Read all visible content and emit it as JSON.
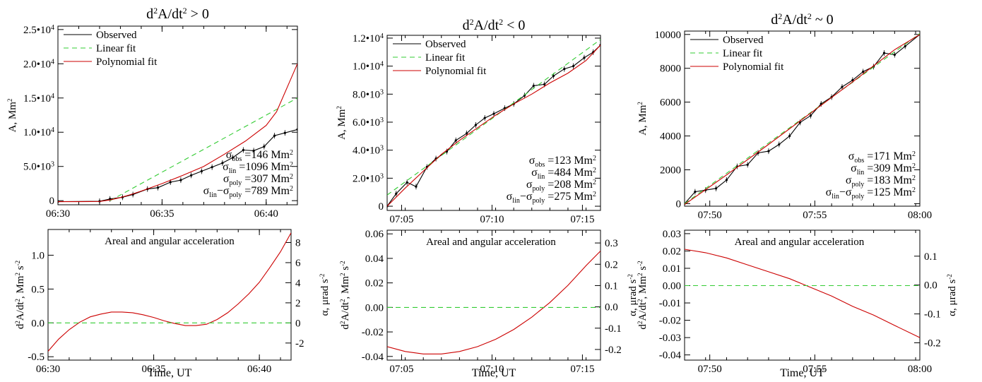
{
  "chart_data": [
    {
      "type": "line",
      "title": "d2A/dt2 > 0",
      "title_parts": [
        "d",
        "2",
        "A/dt",
        "2",
        " > 0"
      ],
      "ylabel": "A, Mm2",
      "ylabel_parts": [
        "A, Mm",
        "2"
      ],
      "x_unit": "minutes (UT)",
      "xlim": [
        0,
        11.5
      ],
      "ylim": [
        -600,
        25500
      ],
      "x_ticks": [
        0,
        5,
        10
      ],
      "x_tick_labels": [
        "06:30",
        "06:35",
        "06:40"
      ],
      "y_ticks": [
        0,
        5000,
        10000,
        15000,
        20000,
        25000
      ],
      "y_tick_labels": [
        {
          "m": "0",
          "e": ""
        },
        {
          "m": "5.0•10",
          "e": "3"
        },
        {
          "m": "1.0•10",
          "e": "4"
        },
        {
          "m": "1.5•10",
          "e": "4"
        },
        {
          "m": "2.0•10",
          "e": "4"
        },
        {
          "m": "2.5•10",
          "e": "4"
        }
      ],
      "legend": {
        "position": "top-left",
        "entries": [
          "Observed",
          "Linear fit",
          "Polynomial fit"
        ]
      },
      "series": [
        {
          "name": "Observed",
          "color": "#000000",
          "style": "solid",
          "markers": true,
          "x": [
            0,
            2.0,
            2.5,
            3.1,
            3.6,
            4.3,
            4.8,
            5.4,
            5.9,
            6.4,
            6.9,
            7.4,
            7.9,
            8.4,
            8.9,
            9.4,
            9.9,
            10.4,
            10.9,
            11.5
          ],
          "y": [
            -150,
            -80,
            250,
            500,
            900,
            1700,
            1900,
            2700,
            3000,
            3700,
            4300,
            4900,
            5500,
            6300,
            7400,
            7300,
            7900,
            9500,
            9900,
            10400
          ]
        },
        {
          "name": "Linear fit",
          "color": "#33cc33",
          "style": "dashed",
          "x": [
            2.5,
            11.5
          ],
          "y": [
            0,
            15000
          ]
        },
        {
          "name": "Polynomial fit",
          "color": "#cc0000",
          "style": "solid",
          "x": [
            0,
            1,
            2,
            2.5,
            3,
            3.5,
            4,
            5,
            6,
            7,
            8,
            9,
            10,
            10.5,
            11,
            11.5
          ],
          "y": [
            -150,
            -150,
            -120,
            100,
            450,
            900,
            1400,
            2500,
            3700,
            5000,
            6800,
            8700,
            11000,
            13000,
            16500,
            20000
          ]
        }
      ],
      "annotations": [
        {
          "sym": "σ",
          "sub": "obs",
          "text": " =146 Mm",
          "sup": "2"
        },
        {
          "sym": "σ",
          "sub": "lin",
          "text": " =1096 Mm",
          "sup": "2"
        },
        {
          "sym": "σ",
          "sub": "poly",
          "text": " =307 Mm",
          "sup": "2"
        },
        {
          "sym": "σ",
          "sub": "lin",
          "mid": "−σ",
          "sub2": "poly",
          "text": " =789 Mm",
          "sup": "2"
        }
      ]
    },
    {
      "type": "line",
      "title": "d2A/dt2 < 0",
      "title_parts": [
        "d",
        "2",
        "A/dt",
        "2",
        " < 0"
      ],
      "ylabel": "A, Mm2",
      "ylabel_parts": [
        "A, Mm",
        "2"
      ],
      "x_unit": "minutes (UT)",
      "xlim": [
        0,
        11.8
      ],
      "ylim": [
        -300,
        12200
      ],
      "x_ticks": [
        0.8,
        5.8,
        10.8
      ],
      "x_tick_labels": [
        "07:05",
        "07:10",
        "07:15"
      ],
      "y_ticks": [
        0,
        2000,
        4000,
        6000,
        8000,
        10000,
        12000
      ],
      "y_tick_labels": [
        {
          "m": "0",
          "e": ""
        },
        {
          "m": "2.0•10",
          "e": "3"
        },
        {
          "m": "4.0•10",
          "e": "3"
        },
        {
          "m": "6.0•10",
          "e": "3"
        },
        {
          "m": "8.0•10",
          "e": "3"
        },
        {
          "m": "1.0•10",
          "e": "4"
        },
        {
          "m": "1.2•10",
          "e": "4"
        }
      ],
      "legend": {
        "position": "top-left",
        "entries": [
          "Observed",
          "Linear fit",
          "Polynomial fit"
        ]
      },
      "series": [
        {
          "name": "Observed",
          "color": "#000000",
          "style": "solid",
          "markers": true,
          "x": [
            0,
            0.5,
            1.1,
            1.6,
            2.2,
            2.7,
            3.3,
            3.8,
            4.4,
            4.9,
            5.4,
            5.9,
            6.5,
            7.0,
            7.6,
            8.1,
            8.7,
            9.2,
            9.8,
            10.3,
            10.9,
            11.4,
            11.8
          ],
          "y": [
            0,
            900,
            1700,
            1400,
            2800,
            3400,
            3900,
            4700,
            5200,
            5800,
            6300,
            6600,
            7000,
            7300,
            7900,
            8600,
            8700,
            9300,
            9800,
            10000,
            10600,
            11000,
            11500
          ]
        },
        {
          "name": "Linear fit",
          "color": "#33cc33",
          "style": "dashed",
          "x": [
            0,
            11.8
          ],
          "y": [
            800,
            11900
          ]
        },
        {
          "name": "Polynomial fit",
          "color": "#cc0000",
          "style": "solid",
          "x": [
            0,
            1,
            2,
            3,
            4,
            5,
            6,
            7,
            8,
            9,
            10,
            11,
            11.8
          ],
          "y": [
            0,
            1300,
            2500,
            3700,
            4700,
            5600,
            6500,
            7300,
            8000,
            8800,
            9500,
            10400,
            11500
          ]
        }
      ],
      "annotations": [
        {
          "sym": "σ",
          "sub": "obs",
          "text": " =123 Mm",
          "sup": "2"
        },
        {
          "sym": "σ",
          "sub": "lin",
          "text": " =484 Mm",
          "sup": "2"
        },
        {
          "sym": "σ",
          "sub": "poly",
          "text": " =208 Mm",
          "sup": "2"
        },
        {
          "sym": "σ",
          "sub": "lin",
          "mid": "−σ",
          "sub2": "poly",
          "text": " =275 Mm",
          "sup": "2"
        }
      ]
    },
    {
      "type": "line",
      "title": "d2A/dt2 ~ 0",
      "title_parts": [
        "d",
        "2",
        "A/dt",
        "2",
        " ~ 0"
      ],
      "ylabel": "A, Mm2",
      "ylabel_parts": [
        "A, Mm",
        "2"
      ],
      "x_unit": "minutes (UT)",
      "xlim": [
        0,
        11.2
      ],
      "ylim": [
        -150,
        10200
      ],
      "x_ticks": [
        1.2,
        6.2,
        11.2
      ],
      "x_tick_labels": [
        "07:50",
        "07:55",
        "08:00"
      ],
      "y_ticks": [
        0,
        2000,
        4000,
        6000,
        8000,
        10000
      ],
      "y_tick_labels": [
        {
          "m": "0",
          "e": ""
        },
        {
          "m": "2000",
          "e": ""
        },
        {
          "m": "4000",
          "e": ""
        },
        {
          "m": "6000",
          "e": ""
        },
        {
          "m": "8000",
          "e": ""
        },
        {
          "m": "10000",
          "e": ""
        }
      ],
      "legend": {
        "position": "top-left",
        "entries": [
          "Observed",
          "Linear fit",
          "Polynomial fit"
        ]
      },
      "series": [
        {
          "name": "Observed",
          "color": "#000000",
          "style": "solid",
          "markers": true,
          "x": [
            0,
            0.5,
            1.0,
            1.5,
            2.0,
            2.5,
            3.0,
            3.5,
            4.0,
            4.5,
            5.0,
            5.5,
            6.0,
            6.5,
            7.0,
            7.5,
            8.0,
            8.5,
            9.0,
            9.5,
            10.0,
            10.5,
            11.2
          ],
          "y": [
            0,
            700,
            800,
            900,
            1400,
            2200,
            2300,
            3000,
            3100,
            3500,
            4000,
            4800,
            5200,
            5900,
            6300,
            6900,
            7300,
            7800,
            8100,
            8900,
            8800,
            9300,
            10000
          ]
        },
        {
          "name": "Linear fit",
          "color": "#33cc33",
          "style": "dashed",
          "x": [
            0,
            11.2
          ],
          "y": [
            0,
            10050
          ]
        },
        {
          "name": "Polynomial fit",
          "color": "#cc0000",
          "style": "solid",
          "x": [
            0,
            2,
            4,
            6,
            8,
            10,
            11.2
          ],
          "y": [
            -50,
            1700,
            3500,
            5350,
            7200,
            9100,
            10000
          ]
        }
      ],
      "annotations": [
        {
          "sym": "σ",
          "sub": "obs",
          "text": " =171 Mm",
          "sup": "2"
        },
        {
          "sym": "σ",
          "sub": "lin",
          "text": " =309 Mm",
          "sup": "2"
        },
        {
          "sym": "σ",
          "sub": "poly",
          "text": " =183 Mm",
          "sup": "2"
        },
        {
          "sym": "σ",
          "sub": "lin",
          "mid": "−σ",
          "sub2": "poly",
          "text": " =125 Mm",
          "sup": "2"
        }
      ]
    },
    {
      "type": "line",
      "title": "Areal and angular acceleration",
      "xlabel": "Time, UT",
      "ylabel": "d2A/dt2, Mm2 s-2",
      "ylabel_parts": [
        "d",
        "2",
        "A/dt",
        "2",
        ", Mm",
        "2",
        " s",
        "-2"
      ],
      "y2label": "α, μrad s-2",
      "y2label_parts": [
        "α, μrad s",
        "-2"
      ],
      "xlim": [
        0,
        11.5
      ],
      "ylim": [
        -0.55,
        1.38
      ],
      "y2lim": [
        -3.7,
        9.3
      ],
      "x_ticks": [
        0,
        5,
        10
      ],
      "x_tick_labels": [
        "06:30",
        "06:35",
        "06:40"
      ],
      "y_ticks": [
        -0.5,
        0.0,
        0.5,
        1.0
      ],
      "y_tick_labels": [
        "-0.5",
        "0.0",
        "0.5",
        "1.0"
      ],
      "y2_ticks": [
        -2,
        0,
        2,
        4,
        6,
        8
      ],
      "y2_tick_labels": [
        "-2",
        "0",
        "2",
        "4",
        "6",
        "8"
      ],
      "series": [
        {
          "name": "",
          "color": "#cc0000",
          "style": "solid",
          "x": [
            0,
            0.5,
            1,
            1.5,
            2,
            2.5,
            3,
            3.5,
            4,
            4.5,
            5,
            5.5,
            6,
            6.5,
            7,
            7.5,
            8,
            8.5,
            9,
            9.5,
            10,
            10.5,
            11,
            11.5
          ],
          "y": [
            -0.42,
            -0.24,
            -0.1,
            0.01,
            0.09,
            0.13,
            0.16,
            0.16,
            0.15,
            0.12,
            0.08,
            0.03,
            -0.01,
            -0.04,
            -0.04,
            -0.02,
            0.05,
            0.15,
            0.28,
            0.43,
            0.6,
            0.82,
            1.05,
            1.33
          ]
        },
        {
          "name": "",
          "color": "#33cc33",
          "style": "dashed",
          "x": [
            0,
            11.5
          ],
          "y": [
            0,
            0
          ]
        }
      ]
    },
    {
      "type": "line",
      "title": "Areal and angular acceleration",
      "xlabel": "Time, UT",
      "ylabel": "d2A/dt2, Mm2 s-2",
      "ylabel_parts": [
        "d",
        "2",
        "A/dt",
        "2",
        ", Mm",
        "2",
        " s",
        "-2"
      ],
      "y2label": "α, μrad s-2",
      "y2label_parts": [
        "α, μrad s",
        "-2"
      ],
      "xlim": [
        0,
        11.8
      ],
      "ylim": [
        -0.043,
        0.063
      ],
      "y2lim": [
        -0.25,
        0.36
      ],
      "x_ticks": [
        0.8,
        5.8,
        10.8
      ],
      "x_tick_labels": [
        "07:05",
        "07:10",
        "07:15"
      ],
      "y_ticks": [
        -0.04,
        -0.02,
        0.0,
        0.02,
        0.04,
        0.06
      ],
      "y_tick_labels": [
        "-0.04",
        "-0.02",
        "0.00",
        "0.02",
        "0.04",
        "0.06"
      ],
      "y2_ticks": [
        -0.2,
        -0.1,
        0.0,
        0.1,
        0.2,
        0.3
      ],
      "y2_tick_labels": [
        "-0.2",
        "-0.1",
        "0.0",
        "0.1",
        "0.2",
        "0.3"
      ],
      "series": [
        {
          "name": "",
          "color": "#cc0000",
          "style": "solid",
          "x": [
            0,
            1,
            2,
            3,
            4,
            5,
            6,
            7,
            8,
            9,
            10,
            11,
            11.8
          ],
          "y": [
            -0.032,
            -0.036,
            -0.038,
            -0.038,
            -0.036,
            -0.032,
            -0.026,
            -0.018,
            -0.008,
            0.004,
            0.018,
            0.034,
            0.046
          ]
        },
        {
          "name": "",
          "color": "#33cc33",
          "style": "dashed",
          "x": [
            0,
            11.8
          ],
          "y": [
            0,
            0
          ]
        }
      ]
    },
    {
      "type": "line",
      "title": "Areal and angular acceleration",
      "xlabel": "Time, UT",
      "ylabel": "d2A/dt2, Mm2 s-2",
      "ylabel_parts": [
        "d",
        "2",
        "A/dt",
        "2",
        ", Mm",
        "2",
        " s",
        "-2"
      ],
      "y2label": "α, μrad s-2",
      "y2label_parts": [
        "α, μrad s",
        "-2"
      ],
      "xlim": [
        0,
        11.2
      ],
      "ylim": [
        -0.043,
        0.032
      ],
      "y2lim": [
        -0.26,
        0.19
      ],
      "x_ticks": [
        1.2,
        6.2,
        11.2
      ],
      "x_tick_labels": [
        "07:50",
        "07:55",
        "08:00"
      ],
      "y_ticks": [
        -0.04,
        -0.03,
        -0.02,
        -0.01,
        0.0,
        0.01,
        0.02,
        0.03
      ],
      "y_tick_labels": [
        "-0.04",
        "-0.03",
        "-0.02",
        "-0.01",
        "0.00",
        "0.01",
        "0.02",
        "0.03"
      ],
      "y2_ticks": [
        -0.2,
        -0.1,
        0.0,
        0.1
      ],
      "y2_tick_labels": [
        "-0.2",
        "-0.1",
        "0.0",
        "0.1"
      ],
      "series": [
        {
          "name": "",
          "color": "#cc0000",
          "style": "solid",
          "x": [
            0,
            1,
            2,
            3,
            4,
            5,
            6,
            7,
            8,
            9,
            10,
            11.2
          ],
          "y": [
            0.021,
            0.019,
            0.016,
            0.012,
            0.008,
            0.004,
            -0.001,
            -0.006,
            -0.012,
            -0.017,
            -0.023,
            -0.03
          ]
        },
        {
          "name": "",
          "color": "#33cc33",
          "style": "dashed",
          "x": [
            0,
            11.2
          ],
          "y": [
            0,
            0
          ]
        }
      ]
    }
  ]
}
